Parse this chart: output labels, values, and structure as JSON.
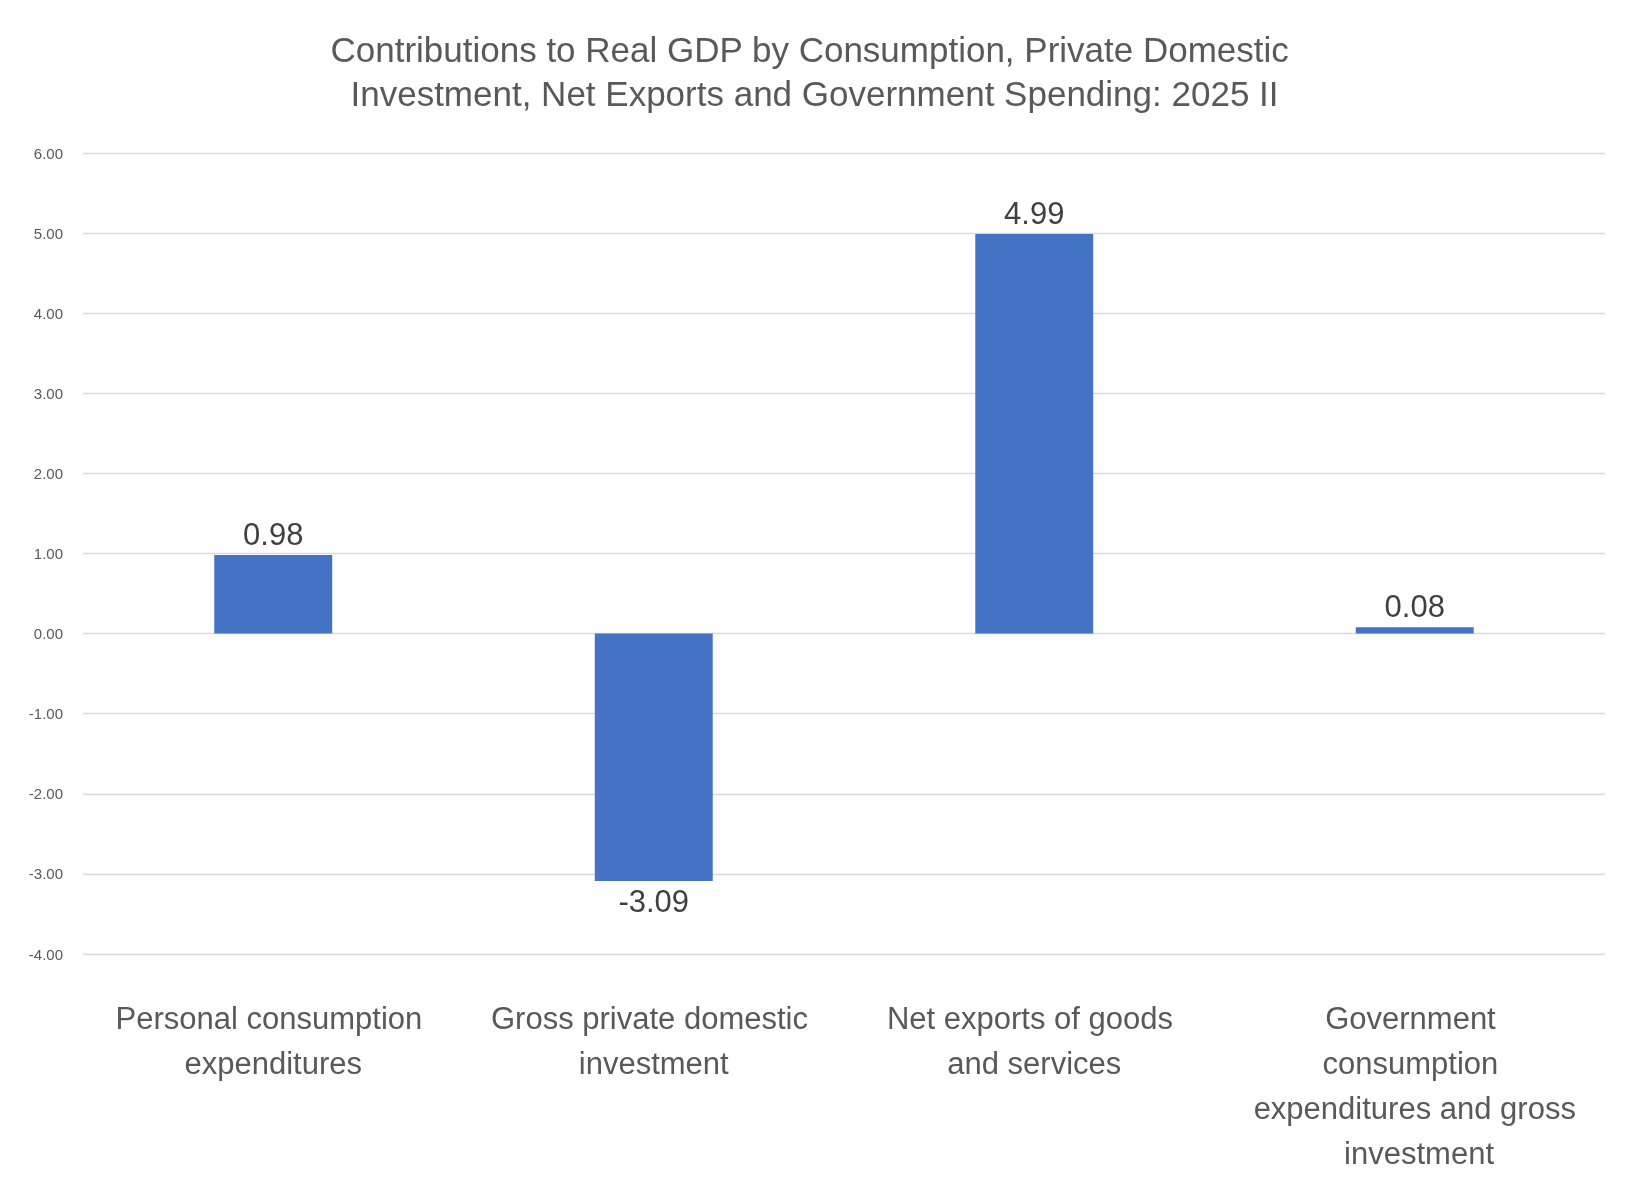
{
  "chart_data": {
    "type": "bar",
    "title": "Contributions to Real GDP by Consumption, Private Domestic Investment, Net Exports and Government Spending: 2025 II",
    "categories": [
      "Personal consumption expenditures",
      "Gross private domestic investment",
      "Net exports of goods and services",
      "Government consumption expenditures and gross investment"
    ],
    "values": [
      0.98,
      -3.09,
      4.99,
      0.08
    ],
    "color": "#4472c4",
    "ylim": [
      -4,
      6
    ],
    "yticks": [
      {
        "value": -4,
        "label": "-4.00"
      },
      {
        "value": -3,
        "label": "-3.00"
      },
      {
        "value": -2,
        "label": "-2.00"
      },
      {
        "value": -1,
        "label": "-1.00"
      },
      {
        "value": 0,
        "label": "0.00"
      },
      {
        "value": 1,
        "label": "1.00"
      },
      {
        "value": 2,
        "label": "2.00"
      },
      {
        "value": 3,
        "label": "3.00"
      },
      {
        "value": 4,
        "label": "4.00"
      },
      {
        "value": 5,
        "label": "5.00"
      },
      {
        "value": 6,
        "label": "6.00"
      }
    ],
    "grid": "y",
    "data_labels": true
  }
}
